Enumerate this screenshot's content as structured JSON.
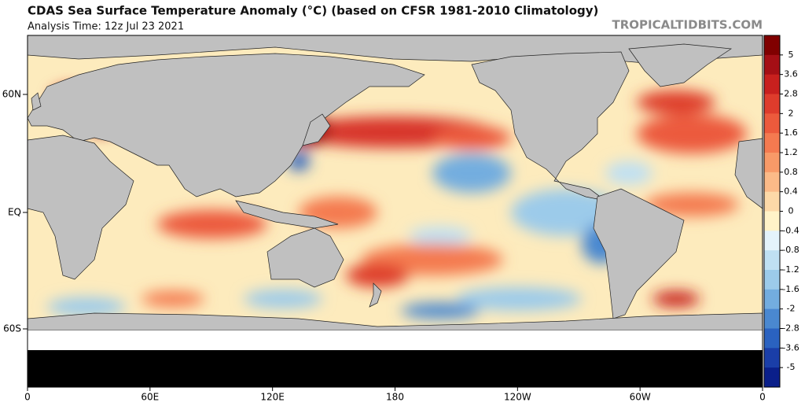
{
  "header": {
    "title": "CDAS Sea Surface Temperature Anomaly (°C) (based on CFSR 1981-2010 Climatology)",
    "subtitle": "Analysis Time: 12z Jul 23 2021",
    "watermark": "TROPICALTIDBITS.COM"
  },
  "map": {
    "lat_labels": [
      "60N",
      "EQ",
      "60S"
    ],
    "lon_labels": [
      "0",
      "60E",
      "120E",
      "180",
      "120W",
      "60W",
      "0"
    ]
  },
  "colorbar": {
    "ticks": [
      5,
      3.6,
      2.8,
      2,
      1.6,
      1.2,
      0.8,
      0.4,
      0,
      -0.4,
      -0.8,
      -1.2,
      -1.6,
      -2,
      -2.8,
      -3.6,
      -5
    ],
    "colors": [
      "#800000",
      "#a50f15",
      "#c8201e",
      "#de3c2c",
      "#ec5a3c",
      "#f47a50",
      "#f89a68",
      "#fbba88",
      "#fdd9a8",
      "#fff3c8",
      "#e4f3fb",
      "#bfe0f3",
      "#9ccbea",
      "#73addf",
      "#4a88d0",
      "#2a62c0",
      "#1a3ea8",
      "#0a1f8a"
    ]
  }
}
